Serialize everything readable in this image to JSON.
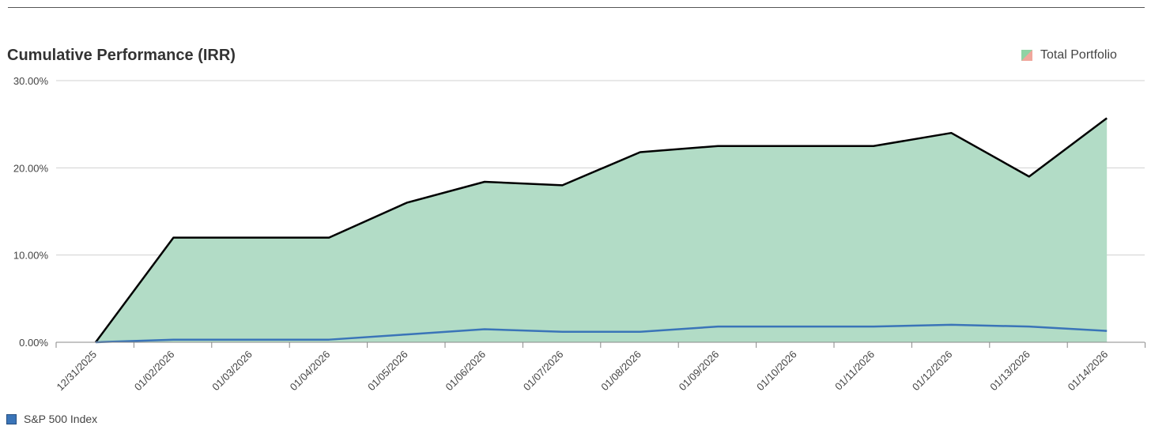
{
  "chart_data": {
    "type": "area",
    "title": "Cumulative Performance (IRR)",
    "categories": [
      "12/31/2025",
      "01/02/2026",
      "01/03/2026",
      "01/04/2026",
      "01/05/2026",
      "01/06/2026",
      "01/07/2026",
      "01/08/2026",
      "01/09/2026",
      "01/10/2026",
      "01/11/2026",
      "01/12/2026",
      "01/13/2026",
      "01/14/2026"
    ],
    "series": [
      {
        "name": "Total Portfolio",
        "type": "area",
        "values": [
          0.0,
          12.0,
          12.0,
          12.0,
          16.0,
          18.4,
          18.0,
          21.8,
          22.5,
          22.5,
          22.5,
          24.0,
          19.0,
          25.7
        ]
      },
      {
        "name": "S&P 500 Index",
        "type": "line",
        "values": [
          0.0,
          0.3,
          0.3,
          0.3,
          0.9,
          1.5,
          1.2,
          1.2,
          1.8,
          1.8,
          1.8,
          2.0,
          1.8,
          1.3
        ]
      }
    ],
    "yticks": [
      "0.00%",
      "10.00%",
      "20.00%",
      "30.00%"
    ],
    "ylim": [
      0,
      30
    ],
    "grid": true,
    "legend_position": "top-right",
    "colors": {
      "area_fill": "#b2dcc6",
      "area_line": "#000000",
      "index_line": "#3a74b8",
      "grid": "#d0d0d0"
    }
  }
}
